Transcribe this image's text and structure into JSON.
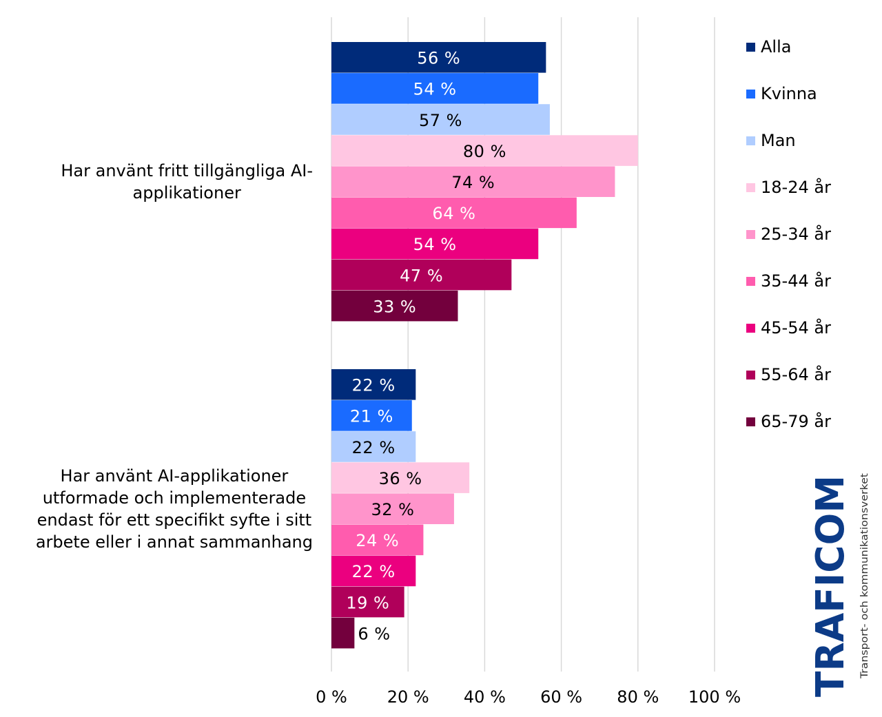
{
  "chart_data": {
    "type": "bar",
    "orientation": "horizontal",
    "categories": [
      "Har använt fritt tillgängliga AI-applikationer",
      "Har använt AI-applikationer utformade och implementerade endast för ett specifikt syfte i sitt arbete eller i annat sammanhang"
    ],
    "series": [
      {
        "name": "Alla",
        "color": "#002b7a",
        "values": [
          56,
          22
        ],
        "label_color": "#ffffff"
      },
      {
        "name": "Kvinna",
        "color": "#1a6bff",
        "values": [
          54,
          21
        ],
        "label_color": "#ffffff"
      },
      {
        "name": "Man",
        "color": "#b0cdff",
        "values": [
          57,
          22
        ],
        "label_color": "#000000"
      },
      {
        "name": "18-24 år",
        "color": "#ffc6e2",
        "values": [
          80,
          36
        ],
        "label_color": "#000000"
      },
      {
        "name": "25-34 år",
        "color": "#ff94cb",
        "values": [
          74,
          32
        ],
        "label_color": "#000000"
      },
      {
        "name": "35-44 år",
        "color": "#ff5cae",
        "values": [
          64,
          24
        ],
        "label_color": "#ffffff"
      },
      {
        "name": "45-54 år",
        "color": "#eb007f",
        "values": [
          54,
          22
        ],
        "label_color": "#ffffff"
      },
      {
        "name": "55-64 år",
        "color": "#b0005a",
        "values": [
          47,
          19
        ],
        "label_color": "#ffffff"
      },
      {
        "name": "65-79 år",
        "color": "#73003d",
        "values": [
          33,
          6
        ],
        "label_color": "#ffffff"
      }
    ],
    "data_label_suffix": " %",
    "xlim": [
      0,
      100
    ],
    "xticks": [
      "0 %",
      "20 %",
      "40 %",
      "60 %",
      "80 %",
      "100 %"
    ],
    "grid": true,
    "legend_position": "right"
  },
  "labels": {
    "cat0_lines": [
      "Har använt fritt tillgängliga AI-",
      "applikationer"
    ],
    "cat1_lines": [
      "Har använt AI-applikationer",
      "utformade och implementerade",
      "endast för ett specifikt syfte i sitt",
      "arbete eller i annat sammanhang"
    ]
  },
  "logo": {
    "name": "TRAFICOM",
    "tagline": "Transport- och kommunikationsverket",
    "color": "#0c3b87"
  }
}
